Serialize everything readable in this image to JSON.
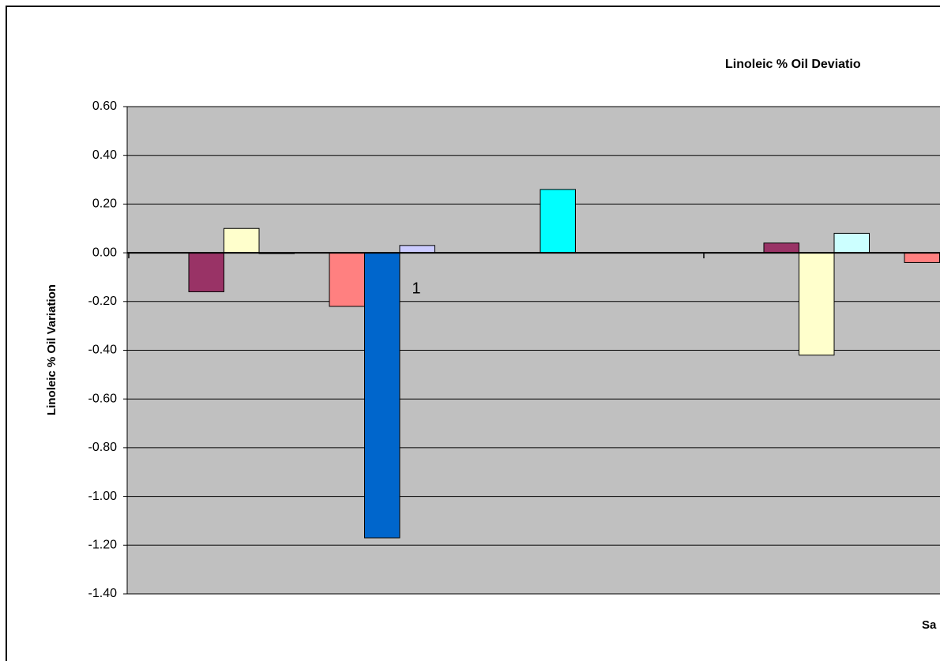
{
  "chart_data": {
    "type": "bar",
    "title": "Linoleic % Oil Deviatio",
    "x_label": "Sa",
    "y_label": "Linoleic % Oil Variation",
    "categories": [
      "1",
      null
    ],
    "series": [
      {
        "color": "#993366",
        "values": [
          -0.16,
          0.04
        ]
      },
      {
        "color": "#FFFFCC",
        "values": [
          0.1,
          -0.42
        ]
      },
      {
        "color": "#CCFFFF",
        "values": [
          0.0,
          0.08
        ]
      },
      {
        "values": [
          null,
          null
        ]
      },
      {
        "color": "#FF8080",
        "values": [
          -0.22,
          -0.04
        ]
      },
      {
        "color": "#0066CC",
        "values": [
          -1.17,
          null
        ]
      },
      {
        "color": "#CCCCFF",
        "values": [
          0.03,
          null
        ]
      },
      {
        "values": [
          null,
          null
        ]
      },
      {
        "values": [
          null,
          null
        ]
      },
      {
        "values": [
          null,
          null
        ]
      },
      {
        "color": "#00FFFF",
        "values": [
          0.26,
          null
        ]
      },
      {
        "values": [
          null,
          null
        ]
      },
      {
        "values": [
          null,
          null
        ]
      },
      {
        "values": [
          null,
          null
        ]
      }
    ],
    "ylim": [
      -1.4,
      0.6
    ],
    "yticks": [
      {
        "value": -1.4,
        "label": "-1.40"
      },
      {
        "value": -1.2,
        "label": "-1.20"
      },
      {
        "value": -1.0,
        "label": "-1.00"
      },
      {
        "value": -0.8,
        "label": "-0.80"
      },
      {
        "value": -0.6,
        "label": "-0.60"
      },
      {
        "value": -0.4,
        "label": "-0.40"
      },
      {
        "value": -0.2,
        "label": "-0.20"
      },
      {
        "value": 0.0,
        "label": "0.00"
      },
      {
        "value": 0.2,
        "label": "0.20"
      },
      {
        "value": 0.4,
        "label": "0.40"
      },
      {
        "value": 0.6,
        "label": "0.60"
      }
    ],
    "grid": true,
    "plot_color": "#C0C0C0"
  }
}
